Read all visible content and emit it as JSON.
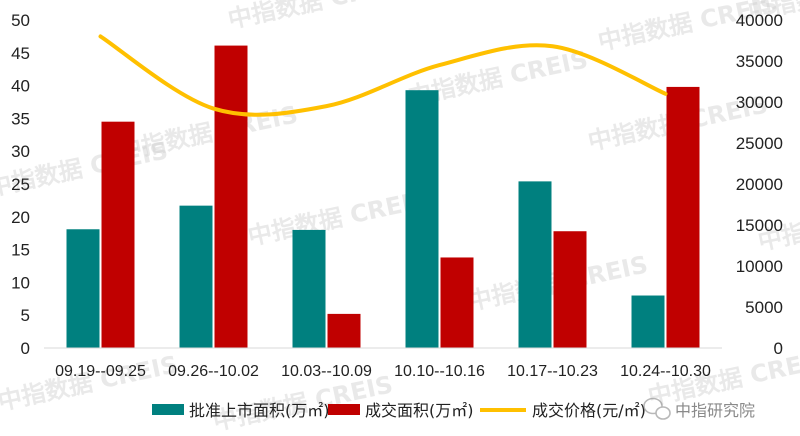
{
  "chart_data": {
    "type": "bar",
    "categories": [
      "09.19--09.25",
      "09.26--10.02",
      "10.03--10.09",
      "10.10--10.16",
      "10.17--10.23",
      "10.24--10.30"
    ],
    "series": [
      {
        "name": "批准上市面积(万㎡)",
        "type": "bar",
        "axis": "left",
        "color": "#00807f",
        "values": [
          18.1,
          21.7,
          18.0,
          39.3,
          25.4,
          8.0
        ]
      },
      {
        "name": "成交面积(万㎡)",
        "type": "bar",
        "axis": "left",
        "color": "#c00000",
        "values": [
          34.5,
          46.1,
          5.2,
          13.8,
          17.8,
          39.8
        ]
      },
      {
        "name": "成交价格(元/㎡)",
        "type": "line",
        "axis": "right",
        "color": "#ffc000",
        "values": [
          38000,
          29200,
          29500,
          34500,
          36800,
          31000
        ]
      }
    ],
    "ylim_left": [
      0,
      50
    ],
    "yticks_left": [
      "0",
      "5",
      "10",
      "15",
      "20",
      "25",
      "30",
      "35",
      "40",
      "45",
      "50"
    ],
    "ylim_right": [
      0,
      40000
    ],
    "yticks_right": [
      "0",
      "5000",
      "10000",
      "15000",
      "20000",
      "25000",
      "30000",
      "35000",
      "40000"
    ],
    "legend_position": "bottom",
    "grid": false
  },
  "watermark": {
    "text": "中指数据 CREIS"
  },
  "source_label": "中指研究院",
  "source_icon": "wechat-icon"
}
